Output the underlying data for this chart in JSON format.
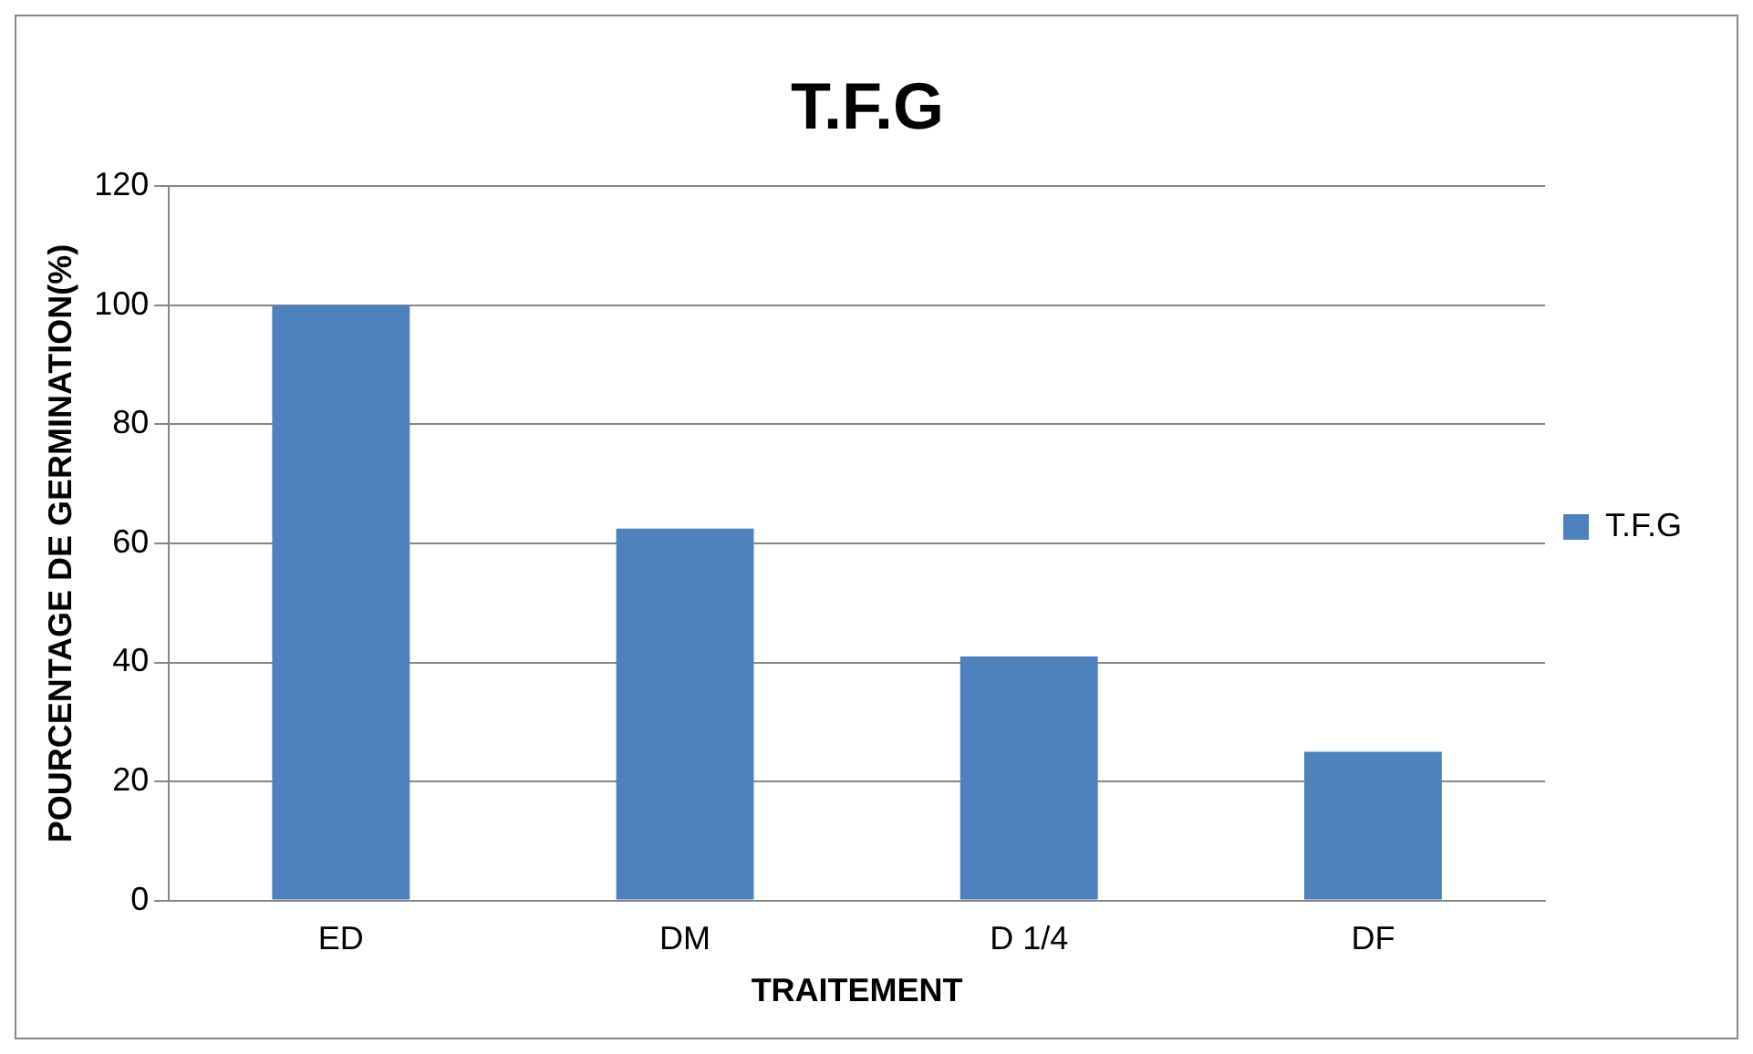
{
  "chart_data": {
    "type": "bar",
    "title": "T.F.G",
    "xlabel": "TRAITEMENT",
    "ylabel": "POURCENTAGE DE GERMINATION(%)",
    "categories": [
      "ED",
      "DM",
      "D 1/4",
      "DF"
    ],
    "series": [
      {
        "name": "T.F.G",
        "color": "#4f81bd",
        "values": [
          100,
          62.5,
          41,
          25
        ]
      }
    ],
    "ylim": [
      0,
      120
    ],
    "yticks": [
      0,
      20,
      40,
      60,
      80,
      100,
      120
    ],
    "grid": "y",
    "legend": "right"
  }
}
